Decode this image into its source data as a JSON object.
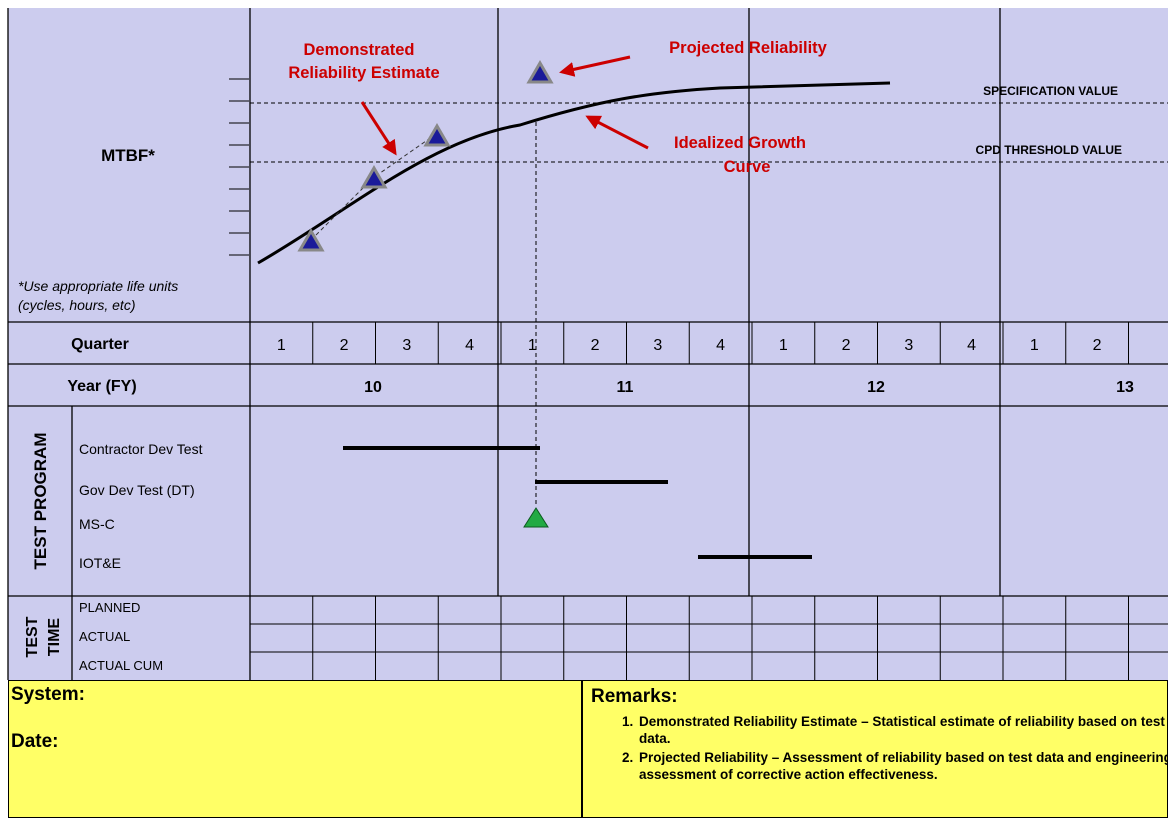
{
  "chart_area": {
    "ylabel": "MTBF*",
    "life_units_note": [
      "*Use appropriate life units",
      "(cycles, hours, etc)"
    ],
    "reference_lines": [
      {
        "label": "SPECIFICATION VALUE"
      },
      {
        "label": "CPD THRESHOLD VALUE"
      }
    ],
    "annotations": {
      "demonstrated": [
        "Demonstrated",
        "Reliability Estimate"
      ],
      "projected": "Projected Reliability",
      "idealized": [
        "Idealized Growth",
        "Curve"
      ]
    },
    "colors": {
      "annotation_red": "#cc0000",
      "background": "#ccccee",
      "triangle_blue": "#1a1a99",
      "triangle_border": "#888888",
      "milestone_green": "#22aa44"
    }
  },
  "timeline": {
    "quarter_label": "Quarter",
    "year_label": "Year (FY)",
    "quarters": [
      "1",
      "2",
      "3",
      "4",
      "1",
      "2",
      "3",
      "4",
      "1",
      "2",
      "3",
      "4",
      "1",
      "2"
    ],
    "years": [
      "10",
      "11",
      "12",
      "13"
    ]
  },
  "test_program": {
    "section_label": "TEST PROGRAM",
    "rows": [
      "Contractor Dev Test",
      "Gov Dev Test (DT)",
      "MS-C",
      "IOT&E"
    ]
  },
  "test_time": {
    "section_label_top": "TEST",
    "section_label_bottom": "TIME",
    "rows": [
      "PLANNED",
      "ACTUAL",
      "ACTUAL CUM"
    ]
  },
  "footer": {
    "system_label": "System:",
    "date_label": "Date:",
    "remarks_title": "Remarks:",
    "remarks": [
      "Demonstrated Reliability Estimate – Statistical estimate of reliability based on test data.",
      "Projected Reliability – Assessment of reliability based on test data and engineering assessment of corrective action effectiveness."
    ]
  }
}
